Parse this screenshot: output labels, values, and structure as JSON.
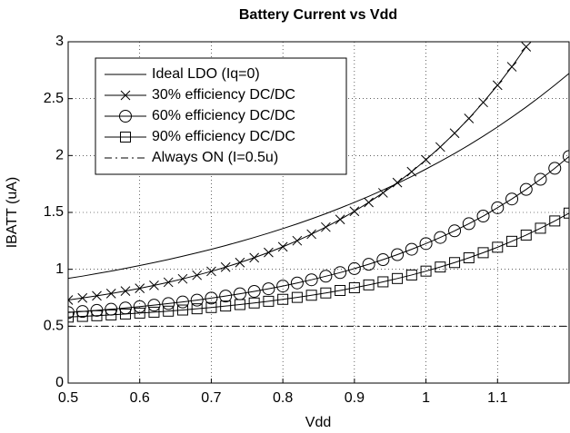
{
  "chart_data": {
    "type": "line",
    "title": "Battery Current vs Vdd",
    "xlabel": "Vdd",
    "ylabel": "IBATT (uA)",
    "x": [
      0.5,
      0.52,
      0.54,
      0.56,
      0.58,
      0.6,
      0.62,
      0.64,
      0.66,
      0.68,
      0.7,
      0.72,
      0.74,
      0.76,
      0.78,
      0.8,
      0.82,
      0.84,
      0.86,
      0.88,
      0.9,
      0.92,
      0.94,
      0.96,
      0.98,
      1.0,
      1.02,
      1.04,
      1.06,
      1.08,
      1.1,
      1.12,
      1.14,
      1.16,
      1.18,
      1.2
    ],
    "series": [
      {
        "name": "Ideal LDO (Iq=0)",
        "color": "#000000",
        "marker": "none",
        "linestyle": "solid",
        "values": [
          0.92,
          0.94,
          0.962,
          0.984,
          1.008,
          1.033,
          1.059,
          1.086,
          1.115,
          1.145,
          1.176,
          1.209,
          1.244,
          1.28,
          1.318,
          1.358,
          1.399,
          1.443,
          1.489,
          1.538,
          1.588,
          1.641,
          1.697,
          1.755,
          1.816,
          1.881,
          1.948,
          2.018,
          2.092,
          2.17,
          2.251,
          2.337,
          2.426,
          2.52,
          2.619,
          2.722
        ]
      },
      {
        "name": "30% efficiency DC/DC",
        "color": "#000000",
        "marker": "x",
        "linestyle": "solid",
        "values": [
          0.73,
          0.748,
          0.767,
          0.787,
          0.809,
          0.833,
          0.859,
          0.886,
          0.916,
          0.948,
          0.982,
          1.019,
          1.059,
          1.102,
          1.148,
          1.198,
          1.251,
          1.309,
          1.371,
          1.438,
          1.51,
          1.588,
          1.672,
          1.762,
          1.858,
          1.963,
          2.075,
          2.196,
          2.326,
          2.467,
          2.618,
          2.78,
          2.956,
          null,
          null,
          null
        ]
      },
      {
        "name": "60% efficiency DC/DC",
        "color": "#000000",
        "marker": "o",
        "linestyle": "solid",
        "values": [
          0.62,
          0.629,
          0.639,
          0.649,
          0.66,
          0.672,
          0.685,
          0.699,
          0.713,
          0.729,
          0.747,
          0.765,
          0.785,
          0.806,
          0.829,
          0.853,
          0.88,
          0.908,
          0.939,
          0.971,
          1.006,
          1.044,
          1.085,
          1.129,
          1.176,
          1.226,
          1.28,
          1.338,
          1.401,
          1.468,
          1.541,
          1.618,
          1.702,
          1.791,
          1.888,
          1.992
        ]
      },
      {
        "name": "90% efficiency DC/DC",
        "color": "#000000",
        "marker": "square",
        "linestyle": "solid",
        "values": [
          0.58,
          0.586,
          0.592,
          0.599,
          0.607,
          0.615,
          0.623,
          0.632,
          0.642,
          0.653,
          0.664,
          0.677,
          0.69,
          0.704,
          0.719,
          0.736,
          0.753,
          0.772,
          0.792,
          0.814,
          0.838,
          0.863,
          0.89,
          0.919,
          0.95,
          0.984,
          1.02,
          1.059,
          1.101,
          1.146,
          1.194,
          1.246,
          1.301,
          1.361,
          1.425,
          1.494
        ]
      },
      {
        "name": "Always ON (I=0.5u)",
        "color": "#000000",
        "marker": "none",
        "linestyle": "dashdot",
        "values": [
          0.5,
          0.5,
          0.5,
          0.5,
          0.5,
          0.5,
          0.5,
          0.5,
          0.5,
          0.5,
          0.5,
          0.5,
          0.5,
          0.5,
          0.5,
          0.5,
          0.5,
          0.5,
          0.5,
          0.5,
          0.5,
          0.5,
          0.5,
          0.5,
          0.5,
          0.5,
          0.5,
          0.5,
          0.5,
          0.5,
          0.5,
          0.5,
          0.5,
          0.5,
          0.5,
          0.5
        ]
      }
    ],
    "xlim": [
      0.5,
      1.2
    ],
    "xticks": [
      0.5,
      0.6,
      0.7,
      0.8,
      0.9,
      1,
      1.1
    ],
    "ylim": [
      0,
      3
    ],
    "yticks": [
      0,
      0.5,
      1,
      1.5,
      2,
      2.5,
      3
    ],
    "grid": true,
    "legend": "upper left"
  }
}
